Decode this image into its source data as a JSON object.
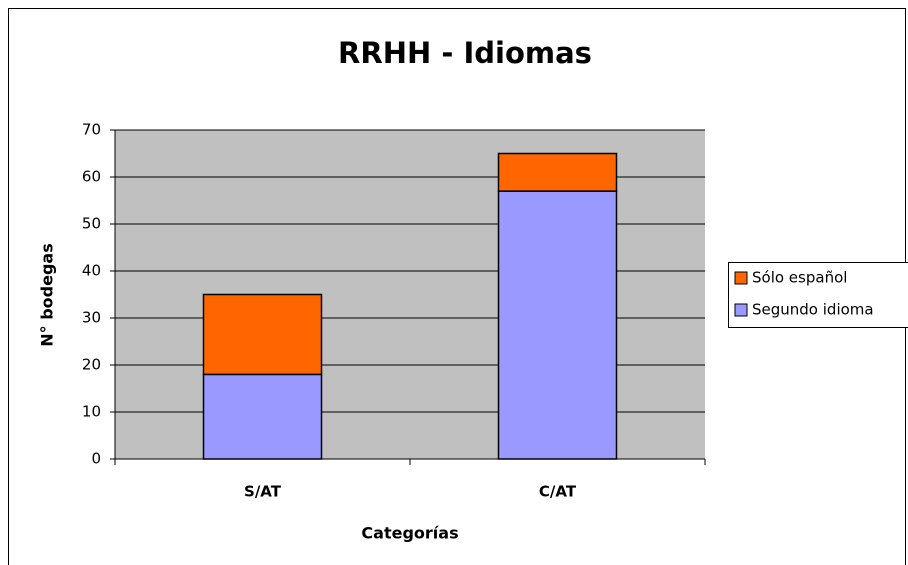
{
  "chart_data": {
    "type": "stacked_bar",
    "title": "RRHH - Idiomas",
    "x_label": "Categorías",
    "y_label": "N° bodegas",
    "categories": [
      "S/AT",
      "C/AT"
    ],
    "series": [
      {
        "name": "Segundo idioma",
        "color": "#9999ff",
        "values": [
          18,
          57
        ]
      },
      {
        "name": "Sólo español",
        "color": "#ff6600",
        "values": [
          17,
          8
        ]
      }
    ],
    "ylim": [
      0,
      70
    ],
    "yticks": [
      0,
      10,
      20,
      30,
      40,
      50,
      60,
      70
    ],
    "grid": true,
    "legend": "right"
  }
}
